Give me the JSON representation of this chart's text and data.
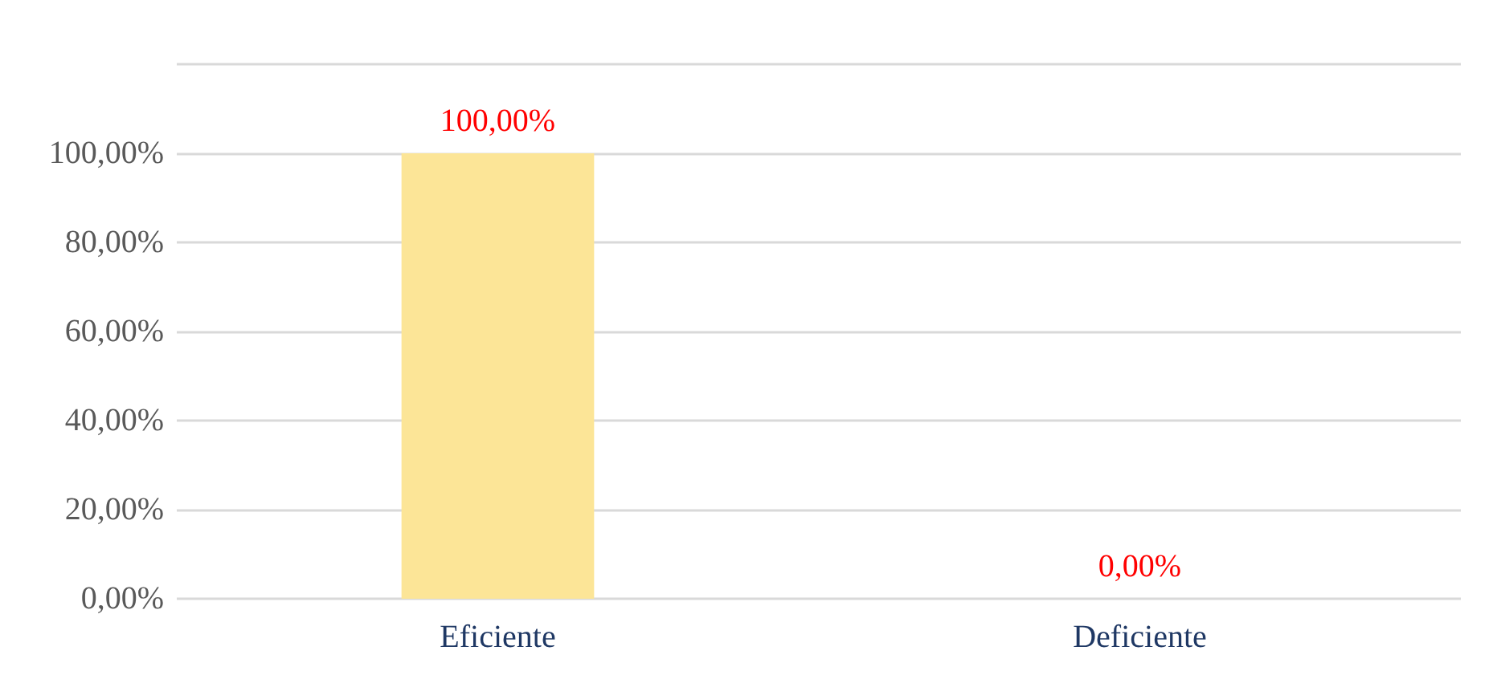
{
  "chart_data": {
    "type": "bar",
    "categories": [
      "Eficiente",
      "Deficiente"
    ],
    "values": [
      100,
      0
    ],
    "colors": [
      "#fce597",
      "#2f5597"
    ],
    "value_labels": [
      "100,00%",
      "0,00%"
    ],
    "ylim": [
      0,
      120
    ],
    "yticks": [
      {
        "value": 0,
        "label": "0,00%"
      },
      {
        "value": 20,
        "label": "20,00%"
      },
      {
        "value": 40,
        "label": "40,00%"
      },
      {
        "value": 60,
        "label": "60,00%"
      },
      {
        "value": 80,
        "label": "80,00%"
      },
      {
        "value": 100,
        "label": "100,00%"
      },
      {
        "value": 120,
        "label": null
      }
    ],
    "grid": "y"
  }
}
